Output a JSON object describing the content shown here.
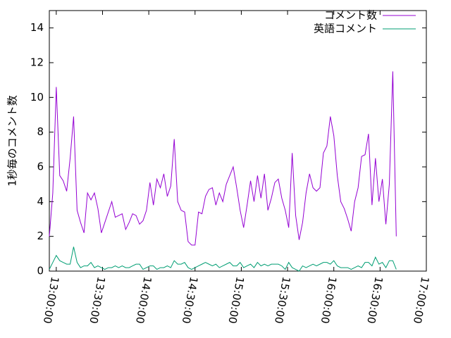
{
  "chart_data": {
    "type": "line",
    "ylabel": "1秒毎のコメント数",
    "x": [
      46530,
      46665,
      46800,
      46935,
      47070,
      47205,
      47340,
      47475,
      47610,
      47745,
      47880,
      48015,
      48150,
      48285,
      48420,
      48555,
      48690,
      48825,
      48960,
      49095,
      49230,
      49365,
      49500,
      49635,
      49770,
      49905,
      50040,
      50175,
      50310,
      50445,
      50580,
      50715,
      50850,
      50985,
      51120,
      51255,
      51390,
      51525,
      51660,
      51795,
      51930,
      52065,
      52200,
      52335,
      52470,
      52605,
      52740,
      52875,
      53010,
      53145,
      53280,
      53415,
      53550,
      53685,
      53820,
      53955,
      54090,
      54225,
      54360,
      54495,
      54630,
      54765,
      54900,
      55035,
      55170,
      55305,
      55440,
      55575,
      55710,
      55845,
      55980,
      56115,
      56250,
      56385,
      56520,
      56655,
      56790,
      56925,
      57060,
      57195,
      57330,
      57465,
      57600,
      57735,
      57870,
      58005,
      58140,
      58275,
      58410,
      58545,
      58680,
      58815,
      58950,
      59085,
      59220,
      59355,
      59490,
      59625,
      59760,
      59895,
      60030
    ],
    "series": [
      {
        "name": "コメント数",
        "color": "#9400d3",
        "values": [
          2.0,
          4.5,
          10.6,
          5.5,
          5.2,
          4.6,
          6.5,
          8.9,
          3.5,
          2.8,
          2.2,
          4.5,
          4.1,
          4.5,
          3.6,
          2.2,
          2.8,
          3.4,
          4.0,
          3.1,
          3.2,
          3.3,
          2.4,
          2.8,
          3.3,
          3.2,
          2.7,
          2.9,
          3.5,
          5.1,
          3.8,
          5.3,
          4.8,
          5.6,
          4.3,
          4.9,
          7.6,
          4.0,
          3.5,
          3.4,
          1.7,
          1.5,
          1.5,
          3.4,
          3.3,
          4.3,
          4.7,
          4.8,
          3.8,
          4.5,
          4.0,
          5.0,
          5.5,
          6.0,
          4.8,
          3.5,
          2.5,
          3.8,
          5.2,
          4.0,
          5.5,
          4.2,
          5.6,
          3.5,
          4.2,
          5.1,
          5.3,
          4.2,
          3.5,
          2.5,
          6.8,
          3.2,
          1.8,
          2.8,
          4.5,
          5.6,
          4.8,
          4.6,
          4.8,
          6.8,
          7.2,
          8.9,
          7.8,
          5.5,
          4.0,
          3.6,
          3.0,
          2.3,
          4.0,
          4.8,
          6.6,
          6.7,
          7.9,
          3.8,
          6.5,
          4.0,
          5.3,
          2.7,
          5.0,
          11.5,
          2.0
        ]
      },
      {
        "name": "英語コメント",
        "color": "#009e73",
        "values": [
          0.1,
          0.5,
          0.9,
          0.6,
          0.5,
          0.4,
          0.4,
          1.4,
          0.5,
          0.2,
          0.3,
          0.3,
          0.5,
          0.2,
          0.3,
          0.2,
          0.1,
          0.2,
          0.2,
          0.3,
          0.2,
          0.3,
          0.2,
          0.2,
          0.3,
          0.4,
          0.4,
          0.1,
          0.2,
          0.3,
          0.3,
          0.1,
          0.2,
          0.2,
          0.3,
          0.2,
          0.6,
          0.4,
          0.4,
          0.5,
          0.2,
          0.1,
          0.2,
          0.3,
          0.4,
          0.5,
          0.4,
          0.3,
          0.4,
          0.2,
          0.3,
          0.4,
          0.5,
          0.3,
          0.3,
          0.5,
          0.2,
          0.3,
          0.4,
          0.2,
          0.5,
          0.3,
          0.4,
          0.3,
          0.4,
          0.4,
          0.4,
          0.3,
          0.1,
          0.5,
          0.2,
          0.1,
          0.0,
          0.3,
          0.2,
          0.3,
          0.4,
          0.3,
          0.4,
          0.5,
          0.5,
          0.4,
          0.6,
          0.3,
          0.2,
          0.2,
          0.2,
          0.1,
          0.2,
          0.3,
          0.2,
          0.5,
          0.5,
          0.3,
          0.8,
          0.4,
          0.5,
          0.2,
          0.6,
          0.6,
          0.1
        ]
      }
    ],
    "xlim": [
      46530,
      61200
    ],
    "xticks": [
      {
        "value": 46800,
        "label": "13:00:00"
      },
      {
        "value": 48600,
        "label": "13:30:00"
      },
      {
        "value": 50400,
        "label": "14:00:00"
      },
      {
        "value": 52200,
        "label": "14:30:00"
      },
      {
        "value": 54000,
        "label": "15:00:00"
      },
      {
        "value": 55800,
        "label": "15:30:00"
      },
      {
        "value": 57600,
        "label": "16:00:00"
      },
      {
        "value": 59400,
        "label": "16:30:00"
      },
      {
        "value": 61200,
        "label": "17:00:00"
      }
    ],
    "ylim": [
      0,
      15
    ],
    "yticks": [
      0,
      2,
      4,
      6,
      8,
      10,
      12,
      14
    ],
    "legend": "top-right"
  }
}
